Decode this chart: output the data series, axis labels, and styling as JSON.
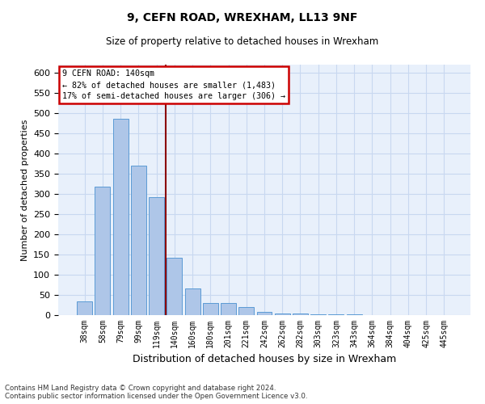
{
  "title1": "9, CEFN ROAD, WREXHAM, LL13 9NF",
  "title2": "Size of property relative to detached houses in Wrexham",
  "xlabel": "Distribution of detached houses by size in Wrexham",
  "ylabel": "Number of detached properties",
  "bar_labels": [
    "38sqm",
    "58sqm",
    "79sqm",
    "99sqm",
    "119sqm",
    "140sqm",
    "160sqm",
    "180sqm",
    "201sqm",
    "221sqm",
    "242sqm",
    "262sqm",
    "282sqm",
    "303sqm",
    "323sqm",
    "343sqm",
    "364sqm",
    "384sqm",
    "404sqm",
    "425sqm",
    "445sqm"
  ],
  "bar_values": [
    35,
    318,
    487,
    370,
    292,
    142,
    67,
    30,
    30,
    20,
    8,
    5,
    4,
    3,
    3,
    2,
    1,
    1,
    1,
    1,
    1
  ],
  "bar_color": "#aec6e8",
  "bar_edge_color": "#5b9bd5",
  "vline_x_index": 5,
  "vline_color": "#8b0000",
  "annotation_line1": "9 CEFN ROAD: 140sqm",
  "annotation_line2": "← 82% of detached houses are smaller (1,483)",
  "annotation_line3": "17% of semi-detached houses are larger (306) →",
  "annotation_box_color": "white",
  "annotation_box_edgecolor": "#cc0000",
  "ylim": [
    0,
    620
  ],
  "yticks": [
    0,
    50,
    100,
    150,
    200,
    250,
    300,
    350,
    400,
    450,
    500,
    550,
    600
  ],
  "footnote": "Contains HM Land Registry data © Crown copyright and database right 2024.\nContains public sector information licensed under the Open Government Licence v3.0.",
  "background_color": "#e8f0fb",
  "plot_background": "white",
  "grid_color": "#c8d8f0"
}
